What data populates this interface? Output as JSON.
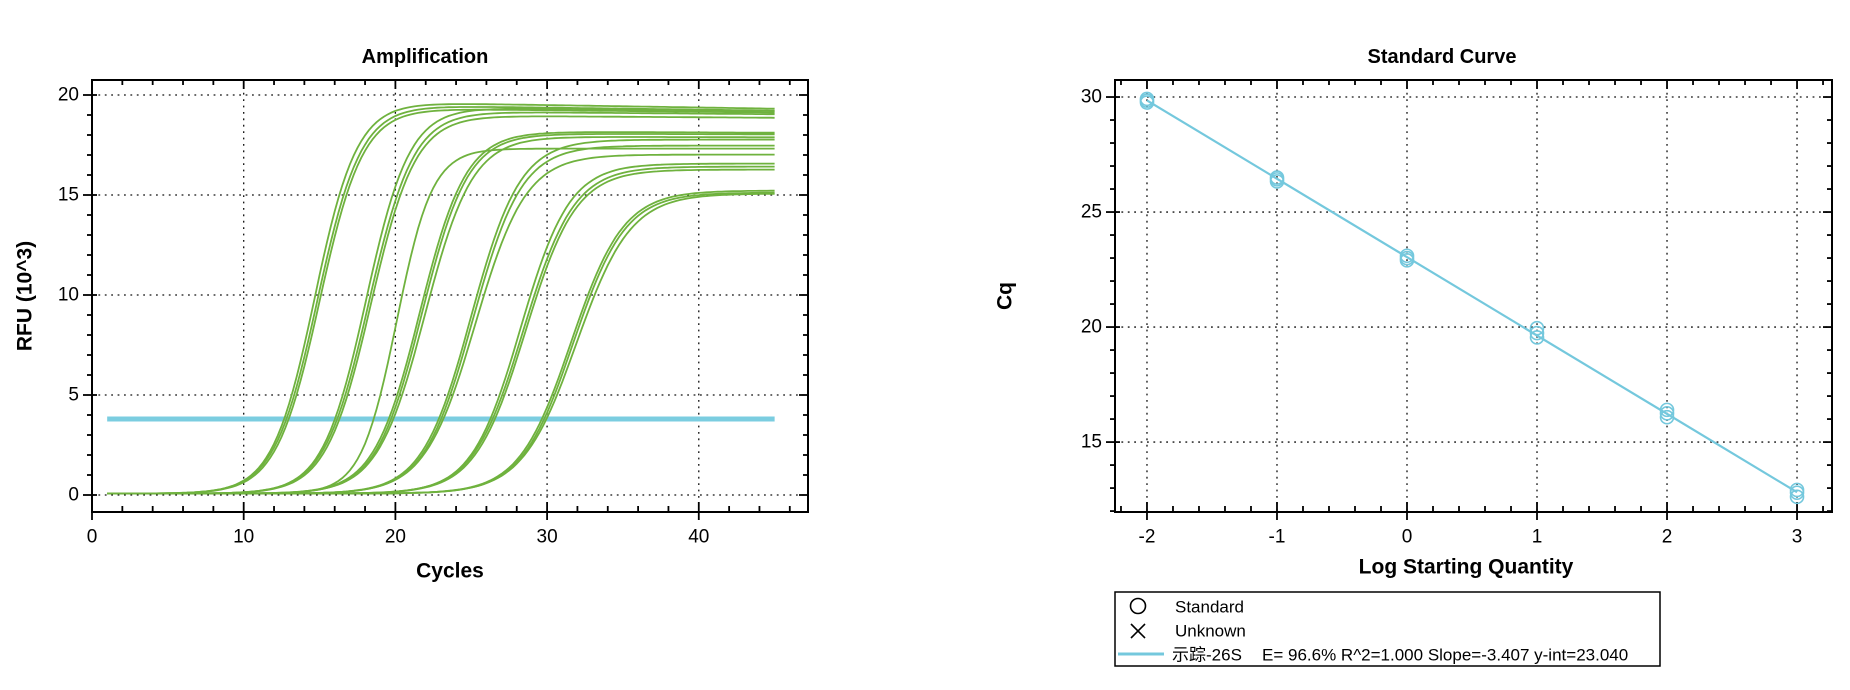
{
  "chart_data": [
    {
      "id": "amplification",
      "type": "line",
      "title": "Amplification",
      "xlabel": "Cycles",
      "ylabel": "RFU (10^3)",
      "xlim": [
        0,
        47.2
      ],
      "ylim": [
        -0.85,
        20.75
      ],
      "x_major_ticks": [
        0,
        10,
        20,
        30,
        40
      ],
      "x_minor_step": 2,
      "y_major_ticks": [
        0,
        5,
        10,
        15,
        20
      ],
      "y_minor_step": 1,
      "grid": "dotted",
      "legend_position": "none",
      "cycle_range": [
        1,
        45
      ],
      "threshold_rfu": 3.8,
      "curve_color": "#6fb23e",
      "threshold_color": "#7bcde0",
      "baseline_rfu": 0.07,
      "curves": [
        {
          "cq": 12.7,
          "plateau": 19.55,
          "k": 0.72,
          "drift": 0.012
        },
        {
          "cq": 12.85,
          "plateau": 19.4,
          "k": 0.7,
          "drift": 0.01
        },
        {
          "cq": 13.0,
          "plateau": 19.25,
          "k": 0.7,
          "drift": 0.008
        },
        {
          "cq": 16.05,
          "plateau": 19.3,
          "k": 0.7,
          "drift": 0.008
        },
        {
          "cq": 16.2,
          "plateau": 19.1,
          "k": 0.68,
          "drift": 0.006
        },
        {
          "cq": 16.35,
          "plateau": 18.9,
          "k": 0.68,
          "drift": 0.005
        },
        {
          "cq": 18.6,
          "plateau": 17.25,
          "k": 0.85,
          "drift": 0.0
        },
        {
          "cq": 19.6,
          "plateau": 18.1,
          "k": 0.66,
          "drift": 0.003
        },
        {
          "cq": 19.75,
          "plateau": 18.0,
          "k": 0.66,
          "drift": 0.002
        },
        {
          "cq": 19.9,
          "plateau": 17.85,
          "k": 0.64,
          "drift": 0.002
        },
        {
          "cq": 22.9,
          "plateau": 17.7,
          "k": 0.62,
          "drift": 0.0
        },
        {
          "cq": 23.05,
          "plateau": 17.4,
          "k": 0.62,
          "drift": 0.0
        },
        {
          "cq": 23.2,
          "plateau": 16.95,
          "k": 0.6,
          "drift": 0.0
        },
        {
          "cq": 26.3,
          "plateau": 16.5,
          "k": 0.62,
          "drift": 0.0
        },
        {
          "cq": 26.45,
          "plateau": 16.35,
          "k": 0.6,
          "drift": 0.0
        },
        {
          "cq": 26.6,
          "plateau": 16.2,
          "k": 0.6,
          "drift": 0.0
        },
        {
          "cq": 29.7,
          "plateau": 15.15,
          "k": 0.58,
          "drift": 0.0
        },
        {
          "cq": 29.85,
          "plateau": 15.05,
          "k": 0.58,
          "drift": 0.0
        },
        {
          "cq": 30.0,
          "plateau": 15.0,
          "k": 0.56,
          "drift": 0.0
        }
      ]
    },
    {
      "id": "standard_curve",
      "type": "scatter",
      "title": "Standard Curve",
      "xlabel": "Log Starting Quantity",
      "ylabel": "Cq",
      "xlim": [
        -2.246,
        3.269
      ],
      "ylim": [
        11.96,
        30.74
      ],
      "x_major_ticks": [
        -2,
        -1,
        0,
        1,
        2,
        3
      ],
      "x_minor_step": 0.2,
      "y_major_ticks": [
        15,
        20,
        25,
        30
      ],
      "y_minor_step": 1,
      "grid": "dotted",
      "line_color": "#74c8dd",
      "marker": "open-circle",
      "fit": {
        "efficiency_pct": 96.6,
        "r_squared": 1.0,
        "slope": -3.407,
        "y_intercept": 23.04
      },
      "fit_line_x": [
        -2,
        3
      ],
      "points": [
        {
          "log_quantity": -2,
          "cq_replicates": [
            29.92,
            29.84,
            29.76
          ]
        },
        {
          "log_quantity": -1,
          "cq_replicates": [
            26.5,
            26.42,
            26.33
          ]
        },
        {
          "log_quantity": 0,
          "cq_replicates": [
            23.1,
            23.0,
            22.9
          ]
        },
        {
          "log_quantity": 1,
          "cq_replicates": [
            19.95,
            19.74,
            19.55
          ]
        },
        {
          "log_quantity": 2,
          "cq_replicates": [
            16.4,
            16.25,
            16.08
          ]
        },
        {
          "log_quantity": 3,
          "cq_replicates": [
            12.92,
            12.8,
            12.62
          ]
        }
      ],
      "legend": {
        "standard_label": "Standard",
        "unknown_label": "Unknown",
        "series_label": "示踪-26S",
        "stats_text": "E= 96.6% R^2=1.000 Slope=-3.407 y-int=23.040"
      }
    }
  ]
}
